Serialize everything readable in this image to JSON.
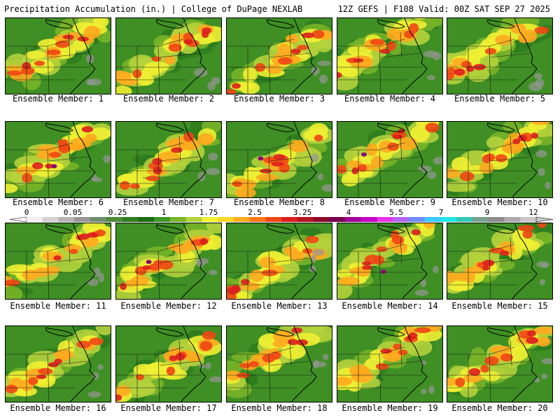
{
  "header": {
    "left_title": "Precipitation Accumulation (in.) | College of DuPage NEXLAB",
    "right_title": "12Z GEFS | F108 Valid: 00Z SAT SEP 27 2025"
  },
  "colors": {
    "scale": [
      "#f0f0f0",
      "#d2d2d2",
      "#b4b4b4",
      "#969696",
      "#6e8c6e",
      "#4f8a3a",
      "#2e7d1e",
      "#1c6b14",
      "#3c9628",
      "#78b428",
      "#b4d23c",
      "#f0f032",
      "#ffd728",
      "#ffaa1e",
      "#ff7814",
      "#f04614",
      "#dc1e1e",
      "#b4141e",
      "#8c0a28",
      "#780050",
      "#a00096",
      "#c800c8",
      "#e632e6",
      "#b464f0",
      "#6e8cff",
      "#3cc8ff",
      "#1ee6e6",
      "#32c8b4",
      "#78a08c",
      "#8c8c8c",
      "#aaaaaa",
      "#c8c8c8"
    ]
  },
  "legend": {
    "ticks": [
      "0",
      "0.05",
      "0.25",
      "1",
      "1.75",
      "2.5",
      "3.25",
      "4",
      "5.5",
      "7",
      "9",
      "12"
    ]
  },
  "panels": [
    {
      "member": 1,
      "caption": "Ensemble Member: 1"
    },
    {
      "member": 2,
      "caption": "Ensemble Member: 2"
    },
    {
      "member": 3,
      "caption": "Ensemble Member: 3"
    },
    {
      "member": 4,
      "caption": "Ensemble Member: 4"
    },
    {
      "member": 5,
      "caption": "Ensemble Member: 5"
    },
    {
      "member": 6,
      "caption": "Ensemble Member: 6"
    },
    {
      "member": 7,
      "caption": "Ensemble Member: 7"
    },
    {
      "member": 8,
      "caption": "Ensemble Member: 8"
    },
    {
      "member": 9,
      "caption": "Ensemble Member: 9"
    },
    {
      "member": 10,
      "caption": "Ensemble Member: 10"
    },
    {
      "member": 11,
      "caption": "Ensemble Member: 11"
    },
    {
      "member": 12,
      "caption": "Ensemble Member: 12"
    },
    {
      "member": 13,
      "caption": "Ensemble Member: 13"
    },
    {
      "member": 14,
      "caption": "Ensemble Member: 14"
    },
    {
      "member": 15,
      "caption": "Ensemble Member: 15"
    },
    {
      "member": 16,
      "caption": "Ensemble Member: 16"
    },
    {
      "member": 17,
      "caption": "Ensemble Member: 17"
    },
    {
      "member": 18,
      "caption": "Ensemble Member: 18"
    },
    {
      "member": 19,
      "caption": "Ensemble Member: 19"
    },
    {
      "member": 20,
      "caption": "Ensemble Member: 20"
    }
  ]
}
